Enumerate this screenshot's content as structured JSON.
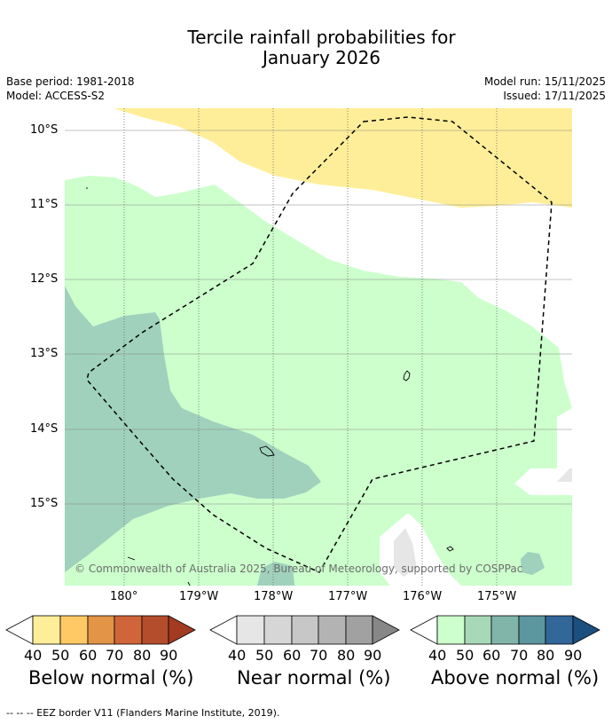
{
  "title_line1": "Tercile rainfall probabilities for",
  "title_line2": "January 2026",
  "meta_left": [
    "Base period: 1981-2018",
    "Model: ACCESS-S2"
  ],
  "meta_right": [
    "Model run: 15/11/2025",
    "Issued: 17/11/2025"
  ],
  "lat_labels": [
    "10°S",
    "11°S",
    "12°S",
    "13°S",
    "14°S",
    "15°S"
  ],
  "lon_labels": [
    "180°",
    "179°W",
    "178°W",
    "177°W",
    "176°W",
    "175°W"
  ],
  "copyright": "© Commonwealth of Australia 2025, Bureau of Meteorology, supported by COSPPac",
  "colorbars": [
    {
      "label": "Below normal (%)",
      "ticks": [
        "40",
        "50",
        "60",
        "70",
        "80",
        "90"
      ],
      "colors": [
        "#ffffff",
        "#ffee99",
        "#ffc966",
        "#e39446",
        "#d1653a",
        "#b34d2c",
        "#a33a22"
      ]
    },
    {
      "label": "Near normal (%)",
      "ticks": [
        "40",
        "50",
        "60",
        "70",
        "80",
        "90"
      ],
      "colors": [
        "#ffffff",
        "#e6e6e6",
        "#d6d6d6",
        "#c7c7c7",
        "#b3b3b3",
        "#a1a1a1",
        "#878787"
      ]
    },
    {
      "label": "Above normal (%)",
      "ticks": [
        "40",
        "50",
        "60",
        "70",
        "80",
        "90"
      ],
      "colors": [
        "#ffffff",
        "#ccffcc",
        "#a7d9b8",
        "#82b5aa",
        "#5c969f",
        "#336699",
        "#1a4f80"
      ]
    }
  ],
  "footer": "--  --  -- EEZ border V11 (Flanders Marine Institute, 2019).",
  "map_colors": {
    "below_40_50": "#ffee99",
    "above_40_50": "#ccffcc",
    "above_50_60": "#a0d1bc",
    "near_40_50": "#e6e6e6"
  }
}
